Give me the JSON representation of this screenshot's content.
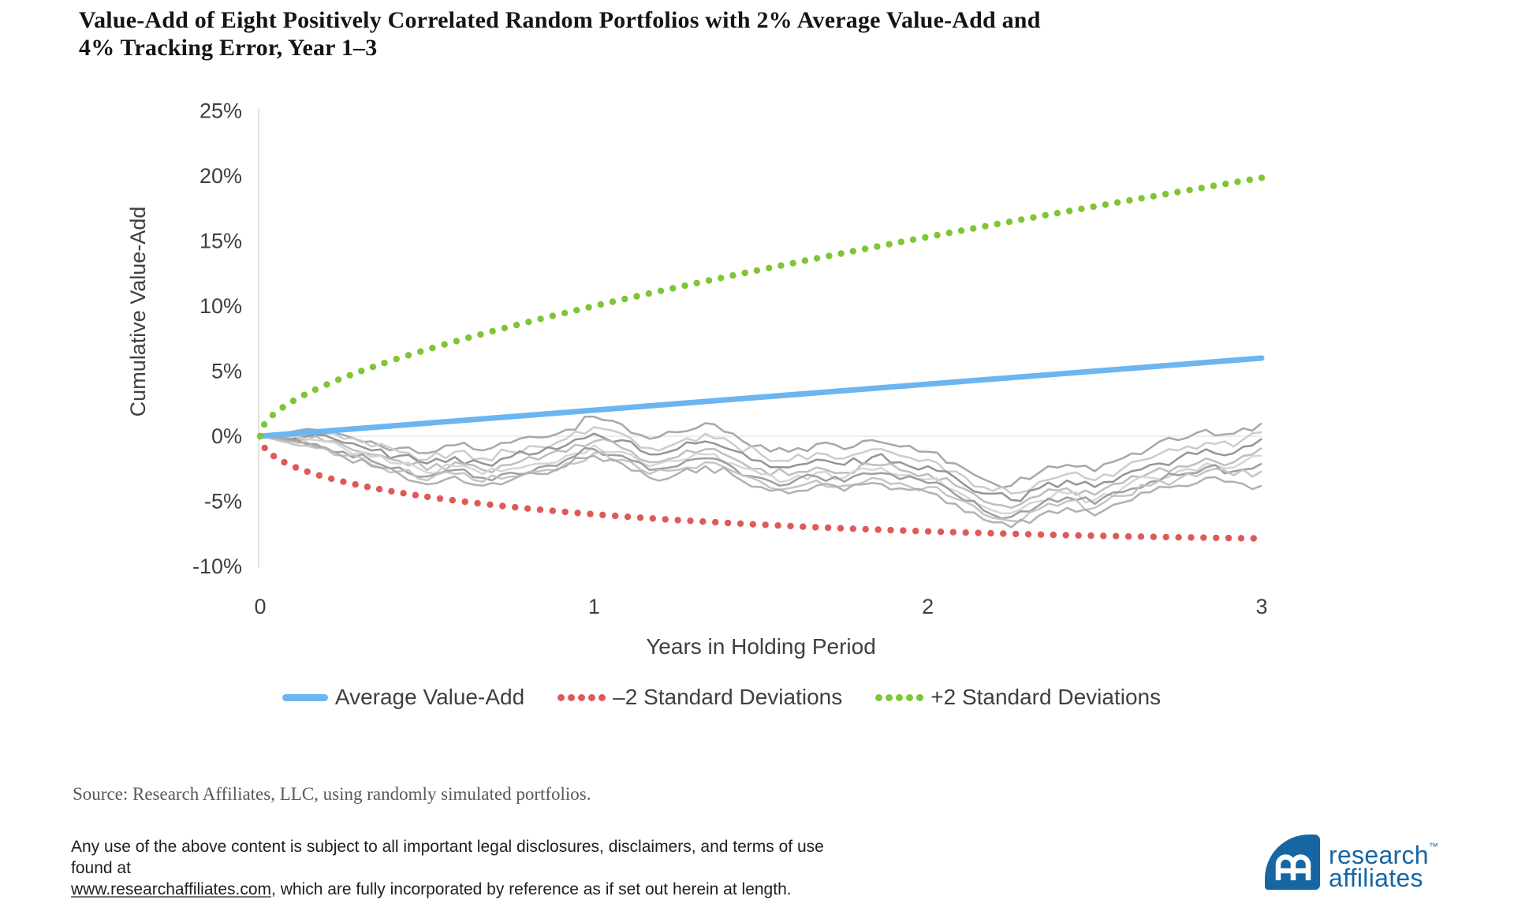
{
  "title": {
    "line1": "Value-Add of Eight Positively Correlated Random Portfolios with 2% Average Value-Add and",
    "line2": "4% Tracking Error, Year 1–3"
  },
  "chart_data": {
    "type": "line",
    "title": "Value-Add of Eight Positively Correlated Random Portfolios with 2% Average Value-Add and 4% Tracking Error, Year 1–3",
    "xlabel": "Years in Holding Period",
    "ylabel": "Cumulative Value-Add",
    "xlim": [
      0,
      3
    ],
    "ylim": [
      -10,
      25
    ],
    "x_tick_labels": [
      "0",
      "1",
      "2",
      "3"
    ],
    "x_tick_values": [
      0,
      1,
      2,
      3
    ],
    "y_tick_labels": [
      "25%",
      "20%",
      "15%",
      "10%",
      "5%",
      "0%",
      "-5%",
      "-10%"
    ],
    "y_tick_values": [
      25,
      20,
      15,
      10,
      5,
      0,
      -5,
      -10
    ],
    "grid": "zero-line-only",
    "legend_position": "bottom",
    "axis_color": "#D9D9D9",
    "zero_line_color": "#E3E3E3",
    "tick_text_color": "#3F3F3F",
    "assumptions": {
      "average_value_add_pct_per_year": 2,
      "tracking_error_pct_per_year": 4
    },
    "series": [
      {
        "name": "Average Value-Add",
        "style": "solid",
        "color": "#6CB5F0",
        "x": [
          0,
          3
        ],
        "values": [
          0,
          6
        ]
      },
      {
        "name": "–2 Standard Deviations",
        "style": "dotted",
        "color": "#DE5A57",
        "formula": "2t - 8*sqrt(t)",
        "sign": -1,
        "end_value": -7.86
      },
      {
        "name": "+2 Standard Deviations",
        "style": "dotted",
        "color": "#7DC636",
        "formula": "2t + 8*sqrt(t)",
        "sign": 1,
        "end_value": 19.86
      }
    ],
    "portfolio_paths": {
      "description": "Eight positively correlated randomly simulated portfolios, cumulative value-add in percent, monthly steps over 3 years",
      "x_start": 0,
      "x_step": 0.083333,
      "midpoint_jitter_pct": 0.38,
      "colors": [
        "#A3A3A3",
        "#C9C9C9",
        "#8F8F8F",
        "#BBBBBB",
        "#D4D4D4",
        "#9A9A9A",
        "#C2C2C2",
        "#ADADAD"
      ],
      "values": [
        [
          0,
          0.3,
          0.5,
          0.1,
          -0.4,
          -0.9,
          -1.3,
          -0.7,
          -1.1,
          -0.5,
          -0.1,
          0.5,
          1.5,
          0.9,
          -0.2,
          0.3,
          1.0,
          0.2,
          -0.7,
          -1.2,
          -0.6,
          -1.0,
          -0.3,
          -0.8,
          -1.2,
          -2.1,
          -3.3,
          -3.8,
          -2.8,
          -2.2,
          -2.7,
          -1.7,
          -0.9,
          -0.3,
          0.5,
          0.2,
          1.0
        ],
        [
          0,
          -0.1,
          0.3,
          -0.2,
          -0.8,
          -1.2,
          -1.8,
          -1.2,
          -1.7,
          -1.2,
          -0.8,
          -0.2,
          0.7,
          0.2,
          -0.9,
          -0.5,
          0.2,
          -0.6,
          -1.4,
          -1.9,
          -1.3,
          -1.7,
          -1.0,
          -1.5,
          -1.8,
          -2.7,
          -3.9,
          -4.4,
          -3.5,
          -2.9,
          -3.4,
          -2.5,
          -1.7,
          -1.1,
          -0.5,
          -0.8,
          0.3
        ],
        [
          0,
          -0.3,
          0.1,
          -0.5,
          -1.1,
          -1.5,
          -2.1,
          -1.6,
          -2.1,
          -1.6,
          -1.3,
          -0.7,
          0.2,
          -0.3,
          -1.4,
          -1.0,
          -0.4,
          -1.1,
          -1.9,
          -2.4,
          -1.8,
          -2.2,
          -1.6,
          -2.0,
          -2.3,
          -3.2,
          -4.4,
          -4.9,
          -4.0,
          -3.4,
          -3.9,
          -3.0,
          -2.2,
          -1.7,
          -1.0,
          -1.3,
          -0.2
        ],
        [
          0,
          -0.4,
          0.0,
          -0.7,
          -1.4,
          -1.9,
          -2.6,
          -2.0,
          -2.6,
          -2.2,
          -1.8,
          -1.2,
          -0.4,
          -0.9,
          -2.0,
          -1.6,
          -1.0,
          -1.7,
          -2.5,
          -3.0,
          -2.4,
          -2.8,
          -2.2,
          -2.6,
          -2.9,
          -3.8,
          -5.0,
          -5.5,
          -4.6,
          -4.0,
          -4.5,
          -3.6,
          -2.8,
          -2.3,
          -1.7,
          -2.0,
          -0.9
        ],
        [
          0,
          0.1,
          -0.3,
          -0.9,
          -1.6,
          -2.1,
          -2.8,
          -2.3,
          -2.9,
          -2.5,
          -2.1,
          -1.5,
          -0.7,
          -1.2,
          -2.3,
          -1.9,
          -1.4,
          -2.1,
          -2.9,
          -3.4,
          -2.8,
          -3.2,
          -2.6,
          -3.0,
          -3.3,
          -4.2,
          -5.4,
          -5.9,
          -5.0,
          -4.4,
          -4.9,
          -4.0,
          -3.2,
          -2.7,
          -2.1,
          -2.4,
          -1.5
        ],
        [
          0,
          -0.2,
          -0.6,
          -1.2,
          -1.9,
          -2.4,
          -3.1,
          -2.6,
          -3.2,
          -2.8,
          -2.4,
          -1.8,
          -1.0,
          -1.5,
          -2.6,
          -2.3,
          -1.7,
          -2.4,
          -3.2,
          -3.7,
          -3.1,
          -3.5,
          -2.9,
          -3.3,
          -3.6,
          -4.5,
          -5.7,
          -6.2,
          -5.3,
          -4.7,
          -5.2,
          -4.3,
          -3.5,
          -3.0,
          -2.4,
          -2.7,
          -2.1
        ],
        [
          0,
          -0.5,
          -0.9,
          -1.5,
          -2.2,
          -2.7,
          -3.4,
          -2.9,
          -3.5,
          -3.1,
          -2.7,
          -2.1,
          -1.3,
          -1.8,
          -2.9,
          -2.6,
          -2.0,
          -2.7,
          -3.5,
          -4.0,
          -3.4,
          -3.8,
          -3.2,
          -3.6,
          -3.9,
          -4.8,
          -6.0,
          -6.5,
          -5.6,
          -5.0,
          -5.5,
          -4.6,
          -3.8,
          -3.3,
          -2.7,
          -3.0,
          -2.7
        ],
        [
          0,
          -0.3,
          -0.8,
          -1.6,
          -2.3,
          -2.9,
          -3.7,
          -3.1,
          -3.8,
          -3.4,
          -2.9,
          -2.3,
          -1.5,
          -2.1,
          -3.2,
          -2.9,
          -2.3,
          -3.0,
          -3.9,
          -4.4,
          -3.8,
          -4.2,
          -3.6,
          -4.0,
          -4.3,
          -5.2,
          -6.4,
          -7.0,
          -6.1,
          -5.5,
          -6.1,
          -5.1,
          -4.3,
          -3.8,
          -3.2,
          -3.5,
          -3.8
        ]
      ]
    }
  },
  "legend": {
    "items": [
      {
        "label": "Average Value-Add",
        "swatch": "line",
        "color": "#6CB5F0"
      },
      {
        "label": "–2 Standard Deviations",
        "swatch": "dots",
        "color": "#DE5A57"
      },
      {
        "label": "+2 Standard Deviations",
        "swatch": "dots",
        "color": "#7DC636"
      }
    ]
  },
  "footer": {
    "source": "Source: Research Affiliates, LLC, using randomly simulated portfolios.",
    "disclaimer": {
      "text_before_link": "Any use of the above content is subject to all important legal disclosures, disclaimers, and terms of use found at",
      "link_text": "www.researchaffiliates.com",
      "text_after_link": ", which are fully incorporated by reference as if set out herein at length."
    },
    "logo": {
      "word1": "research",
      "word2": "affiliates",
      "trademark": "™",
      "brand_color": "#1766A4"
    }
  }
}
